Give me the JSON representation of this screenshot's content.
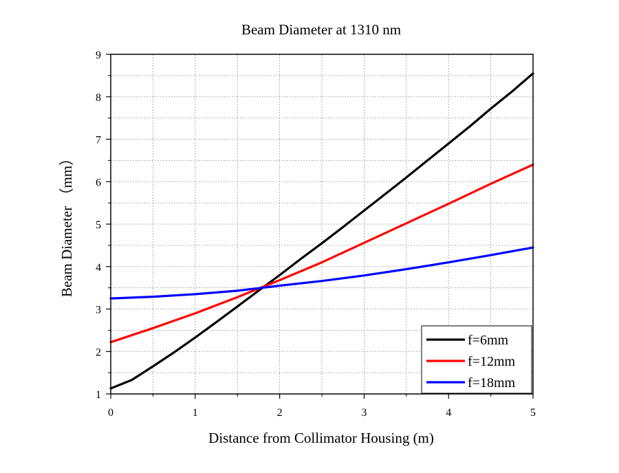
{
  "chart_data": {
    "type": "line",
    "title": "Beam Diameter at 1310 nm",
    "xlabel": "Distance from Collimator Housing (m)",
    "ylabel": "Beam Diameter （mm）",
    "xlim": [
      0,
      5
    ],
    "ylim": [
      1,
      9
    ],
    "xticks": [
      "0",
      "1",
      "2",
      "3",
      "4",
      "5"
    ],
    "yticks": [
      "1",
      "2",
      "3",
      "4",
      "5",
      "6",
      "7",
      "8",
      "9"
    ],
    "grid": true,
    "legend_position": "bottom-right",
    "series": [
      {
        "name": "f=6mm",
        "color": "#000000",
        "x": [
          0,
          0.25,
          0.5,
          0.75,
          1,
          1.25,
          1.5,
          1.75,
          2,
          2.25,
          2.5,
          2.75,
          3,
          3.25,
          3.5,
          3.75,
          4,
          4.25,
          4.5,
          4.75,
          5
        ],
        "y": [
          1.13,
          1.33,
          1.65,
          1.98,
          2.33,
          2.69,
          3.06,
          3.43,
          3.8,
          4.18,
          4.55,
          4.93,
          5.32,
          5.71,
          6.1,
          6.5,
          6.9,
          7.3,
          7.72,
          8.12,
          8.55
        ]
      },
      {
        "name": "f=12mm",
        "color": "#ff0000",
        "x": [
          0,
          0.5,
          1,
          1.5,
          2,
          2.5,
          3,
          3.5,
          4,
          4.5,
          5
        ],
        "y": [
          2.22,
          2.55,
          2.9,
          3.28,
          3.68,
          4.1,
          4.56,
          5.02,
          5.48,
          5.95,
          6.4
        ]
      },
      {
        "name": "f=18mm",
        "color": "#0000ff",
        "x": [
          0,
          0.5,
          1,
          1.5,
          2,
          2.5,
          3,
          3.5,
          4,
          4.5,
          5
        ],
        "y": [
          3.25,
          3.29,
          3.35,
          3.43,
          3.55,
          3.66,
          3.79,
          3.94,
          4.1,
          4.27,
          4.45
        ]
      }
    ]
  }
}
